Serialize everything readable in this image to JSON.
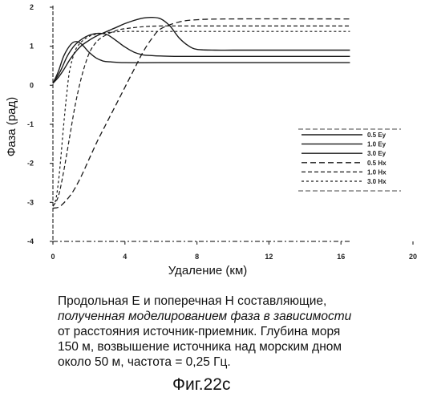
{
  "chart_data": {
    "type": "line",
    "title": "",
    "xlabel": "Удаление (км)",
    "ylabel": "Фаза (рад)",
    "xlim": [
      0,
      20
    ],
    "ylim": [
      -4,
      2
    ],
    "x_ticks": [
      0,
      4,
      8,
      12,
      16,
      20
    ],
    "y_ticks": [
      2,
      1,
      0,
      -1,
      -2,
      -3,
      -4
    ],
    "legend_position": "right",
    "series": [
      {
        "name": "0.5 Ey",
        "style": "solid",
        "x": [
          0,
          0.3,
          0.6,
          1.0,
          1.5,
          2.0,
          2.5,
          3.0,
          3.5,
          4.0,
          4.5,
          5.0,
          5.5,
          6.0,
          6.5,
          7.0,
          7.5,
          8.0,
          9.0,
          10.0,
          12.0,
          16.5
        ],
        "y": [
          0.05,
          0.2,
          0.4,
          0.7,
          0.98,
          1.15,
          1.28,
          1.38,
          1.48,
          1.58,
          1.66,
          1.72,
          1.74,
          1.7,
          1.52,
          1.22,
          1.02,
          0.92,
          0.9,
          0.9,
          0.9,
          0.9
        ]
      },
      {
        "name": "1.0 Ey",
        "style": "solid",
        "x": [
          0,
          0.4,
          0.8,
          1.2,
          1.6,
          2.0,
          2.5,
          3.0,
          3.5,
          4.0,
          4.5,
          5.0,
          5.5,
          6.0,
          7.0,
          10.0,
          16.5
        ],
        "y": [
          0.05,
          0.35,
          0.75,
          1.02,
          1.18,
          1.28,
          1.33,
          1.3,
          1.15,
          0.98,
          0.85,
          0.78,
          0.76,
          0.75,
          0.74,
          0.74,
          0.74
        ]
      },
      {
        "name": "3.0 Ey",
        "style": "solid",
        "x": [
          0,
          0.3,
          0.6,
          1.0,
          1.3,
          1.6,
          2.0,
          2.4,
          2.8,
          3.2,
          4.0,
          6.0,
          10.0,
          16.5
        ],
        "y": [
          0.05,
          0.35,
          0.75,
          1.05,
          1.12,
          1.05,
          0.85,
          0.7,
          0.62,
          0.6,
          0.58,
          0.58,
          0.58,
          0.58
        ]
      },
      {
        "name": "0.5 Hx",
        "style": "long-dash",
        "x": [
          0,
          0.4,
          1.0,
          1.5,
          2.0,
          2.5,
          3.0,
          3.5,
          4.0,
          4.5,
          5.0,
          5.5,
          6.0,
          7.0,
          8.0,
          10.0,
          16.5
        ],
        "y": [
          -3.15,
          -3.1,
          -2.8,
          -2.4,
          -1.9,
          -1.4,
          -0.95,
          -0.5,
          -0.05,
          0.4,
          0.85,
          1.2,
          1.45,
          1.62,
          1.68,
          1.7,
          1.7
        ]
      },
      {
        "name": "1.0 Hx",
        "style": "dash",
        "x": [
          0,
          0.3,
          0.6,
          0.9,
          1.2,
          1.5,
          1.8,
          2.1,
          2.5,
          3.0,
          3.5,
          4.0,
          5.0,
          6.0,
          8.0,
          16.5
        ],
        "y": [
          -3.1,
          -2.85,
          -2.2,
          -1.4,
          -0.6,
          0.05,
          0.55,
          0.9,
          1.15,
          1.3,
          1.4,
          1.45,
          1.5,
          1.52,
          1.52,
          1.52
        ]
      },
      {
        "name": "3.0 Hx",
        "style": "short-dash",
        "x": [
          0,
          0.15,
          0.3,
          0.45,
          0.6,
          0.75,
          0.9,
          1.1,
          1.3,
          1.6,
          2.0,
          2.5,
          3.0,
          4.0,
          6.0,
          16.5
        ],
        "y": [
          -3.1,
          -2.95,
          -2.5,
          -1.8,
          -1.0,
          -0.3,
          0.3,
          0.7,
          0.95,
          1.12,
          1.25,
          1.32,
          1.35,
          1.38,
          1.38,
          1.38
        ]
      }
    ]
  },
  "caption_lines": [
    "Продольная Е и поперечная Н составляющие,",
    "полученная моделированием  фаза в зависимости",
    "от расстояния источник-приемник. Глубина моря",
    "150 м, возвышение источника над морским дном",
    "около 50 м, частота = 0,25 Гц."
  ],
  "figure_label": "Фиг.22c"
}
